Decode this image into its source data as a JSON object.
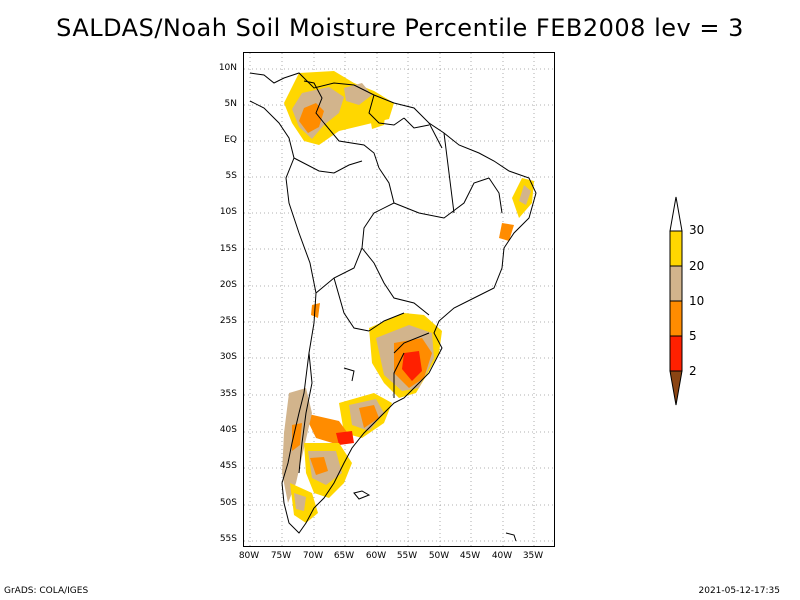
{
  "title": "SALDAS/Noah Soil Moisture Percentile FEB2008 lev = 3",
  "y_ticks": [
    "10N",
    "5N",
    "EQ",
    "5S",
    "10S",
    "15S",
    "20S",
    "25S",
    "30S",
    "35S",
    "40S",
    "45S",
    "50S",
    "55S"
  ],
  "x_ticks": [
    "80W",
    "75W",
    "70W",
    "65W",
    "60W",
    "55W",
    "50W",
    "45W",
    "40W",
    "35W"
  ],
  "legend": {
    "labels": [
      "30",
      "20",
      "10",
      "5",
      "2"
    ],
    "colors": {
      "above_30": "#ffffff",
      "20_30": "#ffd700",
      "10_20": "#d2b48c",
      "5_10": "#ff8c00",
      "2_5": "#ff2000",
      "below_2": "#8b4513"
    }
  },
  "footer": {
    "left": "GrADS: COLA/IGES",
    "right": "2021-05-12-17:35"
  }
}
